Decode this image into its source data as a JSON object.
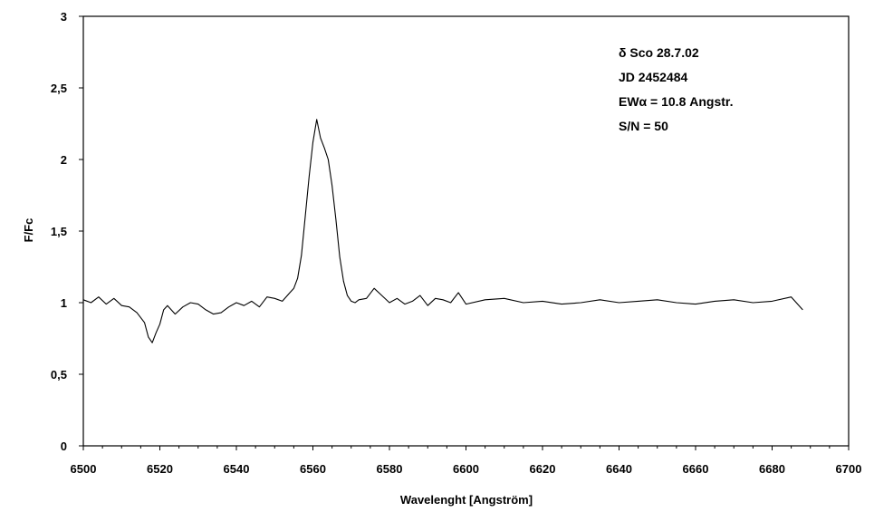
{
  "chart_data": {
    "type": "line",
    "xlabel": "Wavelenght [Angström]",
    "ylabel": "F/Fc",
    "xlim": [
      6500,
      6700
    ],
    "ylim": [
      0,
      3
    ],
    "x_ticks": [
      6500,
      6520,
      6540,
      6560,
      6580,
      6600,
      6620,
      6640,
      6660,
      6680,
      6700
    ],
    "x_tick_labels": [
      "6500",
      "6520",
      "6540",
      "6560",
      "6580",
      "6600",
      "6620",
      "6640",
      "6660",
      "6680",
      "6700"
    ],
    "y_ticks": [
      0,
      0.5,
      1,
      1.5,
      2,
      2.5,
      3
    ],
    "y_tick_labels": [
      "0",
      "0,5",
      "1",
      "1,5",
      "2",
      "2,5",
      "3"
    ],
    "grid": false,
    "annotations": [
      "δ Sco 28.7.02",
      "JD 2452484",
      "EWα = 10.8 Angstr.",
      "S/N = 50"
    ],
    "series": [
      {
        "x": [
          6500,
          6502,
          6504,
          6506,
          6508,
          6510,
          6512,
          6514,
          6516,
          6517,
          6518,
          6519,
          6520,
          6521,
          6522,
          6524,
          6526,
          6528,
          6530,
          6532,
          6534,
          6536,
          6538,
          6540,
          6542,
          6544,
          6546,
          6548,
          6550,
          6552,
          6554,
          6555,
          6556,
          6557,
          6558,
          6559,
          6560,
          6561,
          6562,
          6563,
          6564,
          6565,
          6566,
          6567,
          6568,
          6569,
          6570,
          6571,
          6572,
          6574,
          6576,
          6578,
          6580,
          6582,
          6584,
          6586,
          6588,
          6590,
          6592,
          6594,
          6596,
          6598,
          6600,
          6605,
          6610,
          6615,
          6620,
          6625,
          6630,
          6635,
          6640,
          6645,
          6650,
          6655,
          6660,
          6665,
          6670,
          6675,
          6680,
          6685,
          6688
        ],
        "y": [
          1.02,
          1.0,
          1.04,
          0.99,
          1.03,
          0.98,
          0.97,
          0.93,
          0.86,
          0.76,
          0.72,
          0.79,
          0.85,
          0.95,
          0.98,
          0.92,
          0.97,
          1.0,
          0.99,
          0.95,
          0.92,
          0.93,
          0.97,
          1.0,
          0.98,
          1.01,
          0.97,
          1.04,
          1.03,
          1.01,
          1.07,
          1.1,
          1.17,
          1.33,
          1.6,
          1.88,
          2.12,
          2.28,
          2.15,
          2.08,
          2.0,
          1.82,
          1.58,
          1.32,
          1.15,
          1.05,
          1.01,
          1.0,
          1.02,
          1.03,
          1.1,
          1.05,
          1.0,
          1.03,
          0.99,
          1.01,
          1.05,
          0.98,
          1.03,
          1.02,
          1.0,
          1.07,
          0.99,
          1.02,
          1.03,
          1.0,
          1.01,
          0.99,
          1.0,
          1.02,
          1.0,
          1.01,
          1.02,
          1.0,
          0.99,
          1.01,
          1.02,
          1.0,
          1.01,
          1.04,
          0.95
        ]
      }
    ],
    "colors": {
      "line": "#000000",
      "axis": "#000000",
      "background": "#ffffff"
    }
  }
}
